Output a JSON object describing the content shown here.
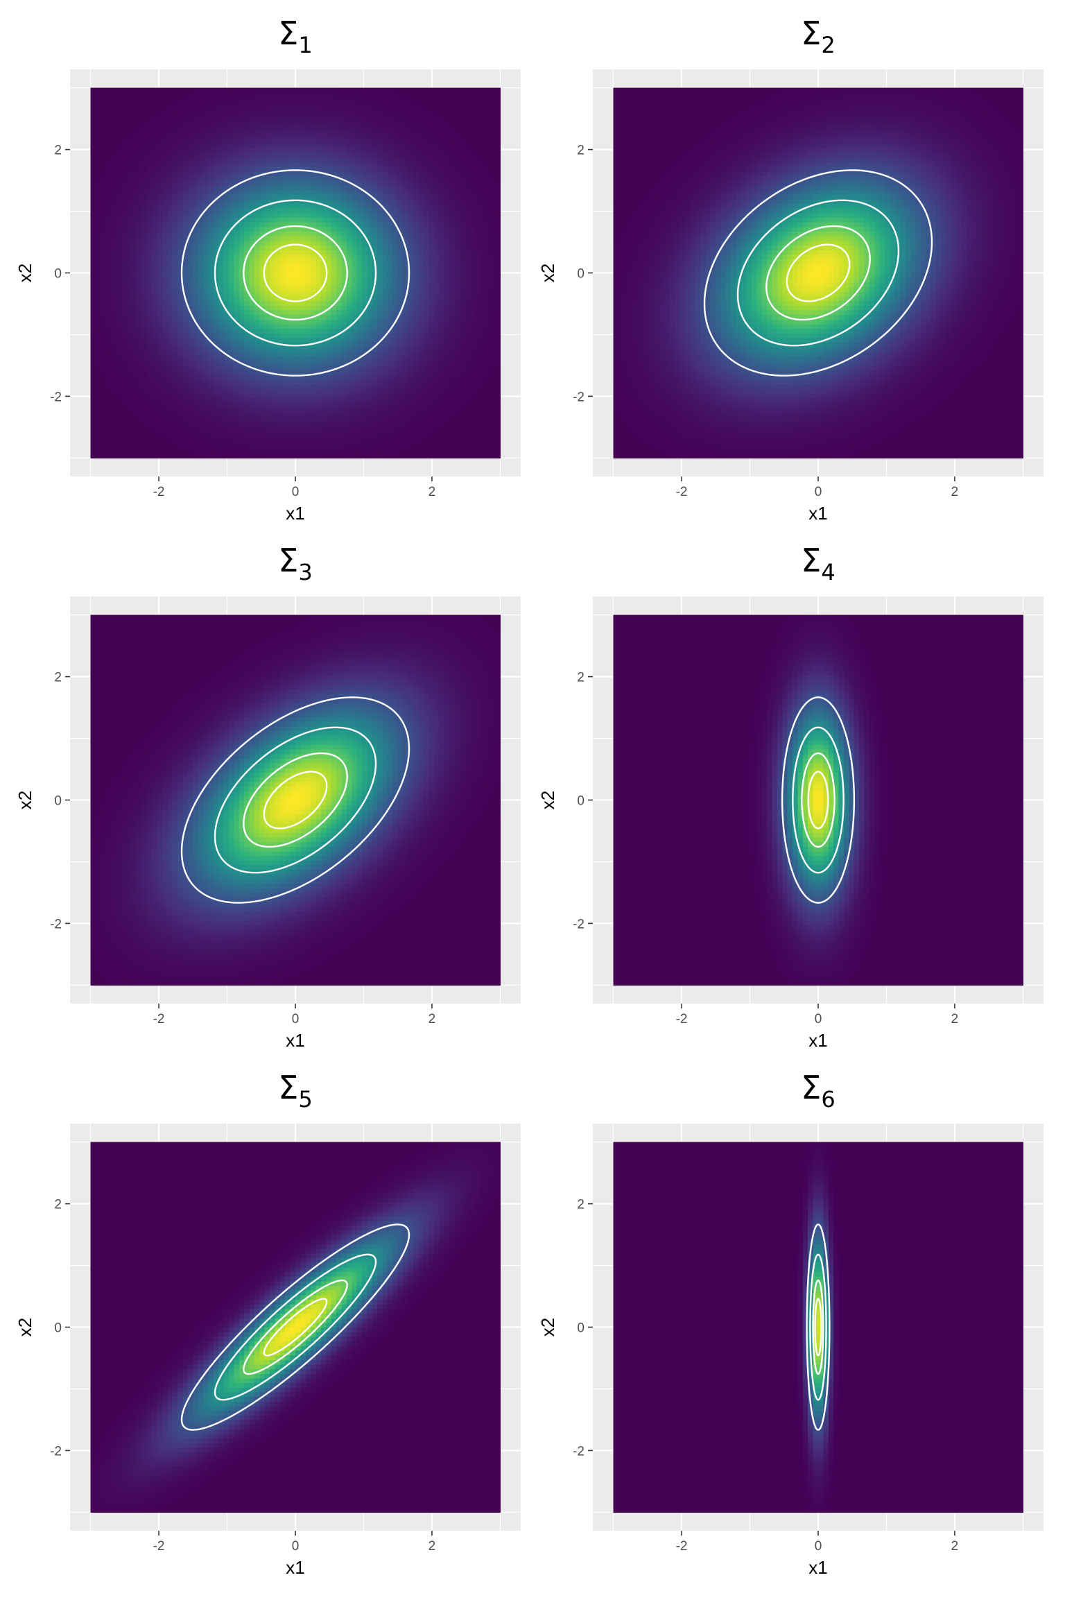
{
  "chart_data": [
    {
      "type": "heatmap",
      "title": "Σ",
      "title_subscript": "1",
      "xlabel": "x1",
      "ylabel": "x2",
      "xlim": [
        -3.3,
        3.3
      ],
      "ylim": [
        -3.3,
        3.3
      ],
      "xticks": [
        "-2",
        "0",
        "2"
      ],
      "yticks": [
        "-2",
        "0",
        "2"
      ],
      "grid": true,
      "covariance": [
        [
          1,
          0
        ],
        [
          0,
          1
        ]
      ],
      "contour_levels": [
        0.25,
        0.5,
        0.75,
        0.9
      ]
    },
    {
      "type": "heatmap",
      "title": "Σ",
      "title_subscript": "2",
      "xlabel": "x1",
      "ylabel": "x2",
      "xlim": [
        -3.3,
        3.3
      ],
      "ylim": [
        -3.3,
        3.3
      ],
      "xticks": [
        "-2",
        "0",
        "2"
      ],
      "yticks": [
        "-2",
        "0",
        "2"
      ],
      "grid": true,
      "covariance": [
        [
          1,
          0.3
        ],
        [
          0.3,
          1
        ]
      ],
      "contour_levels": [
        0.25,
        0.5,
        0.75,
        0.9
      ]
    },
    {
      "type": "heatmap",
      "title": "Σ",
      "title_subscript": "3",
      "xlabel": "x1",
      "ylabel": "x2",
      "xlim": [
        -3.3,
        3.3
      ],
      "ylim": [
        -3.3,
        3.3
      ],
      "xticks": [
        "-2",
        "0",
        "2"
      ],
      "yticks": [
        "-2",
        "0",
        "2"
      ],
      "grid": true,
      "covariance": [
        [
          1,
          0.5
        ],
        [
          0.5,
          1
        ]
      ],
      "contour_levels": [
        0.25,
        0.5,
        0.75,
        0.9
      ]
    },
    {
      "type": "heatmap",
      "title": "Σ",
      "title_subscript": "4",
      "xlabel": "x1",
      "ylabel": "x2",
      "xlim": [
        -3.3,
        3.3
      ],
      "ylim": [
        -3.3,
        3.3
      ],
      "xticks": [
        "-2",
        "0",
        "2"
      ],
      "yticks": [
        "-2",
        "0",
        "2"
      ],
      "grid": true,
      "covariance": [
        [
          0.1,
          0
        ],
        [
          0,
          1
        ]
      ],
      "contour_levels": [
        0.25,
        0.5,
        0.75,
        0.9
      ]
    },
    {
      "type": "heatmap",
      "title": "Σ",
      "title_subscript": "5",
      "xlabel": "x1",
      "ylabel": "x2",
      "xlim": [
        -3.3,
        3.3
      ],
      "ylim": [
        -3.3,
        3.3
      ],
      "xticks": [
        "-2",
        "0",
        "2"
      ],
      "yticks": [
        "-2",
        "0",
        "2"
      ],
      "grid": true,
      "covariance": [
        [
          1,
          0.9
        ],
        [
          0.9,
          1
        ]
      ],
      "contour_levels": [
        0.25,
        0.5,
        0.75,
        0.9
      ]
    },
    {
      "type": "heatmap",
      "title": "Σ",
      "title_subscript": "6",
      "xlabel": "x1",
      "ylabel": "x2",
      "xlim": [
        -3.3,
        3.3
      ],
      "ylim": [
        -3.3,
        3.3
      ],
      "xticks": [
        "-2",
        "0",
        "2"
      ],
      "yticks": [
        "-2",
        "0",
        "2"
      ],
      "grid": true,
      "covariance": [
        [
          0.01,
          0
        ],
        [
          0,
          1
        ]
      ],
      "contour_levels": [
        0.25,
        0.5,
        0.75,
        0.9
      ]
    }
  ],
  "colors": {
    "panel_background": "#ebebeb",
    "grid": "#ffffff",
    "contour": "#ffffff",
    "viridis": [
      "#440154",
      "#472d7b",
      "#3b528b",
      "#2c728e",
      "#21918c",
      "#28ae80",
      "#5ec962",
      "#addc30",
      "#fde725"
    ]
  }
}
